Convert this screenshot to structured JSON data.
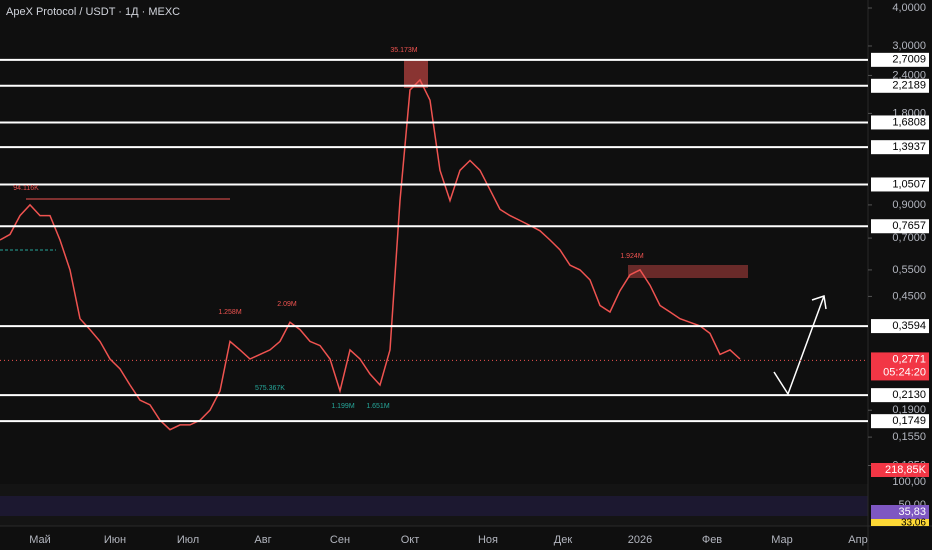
{
  "chart_data": {
    "type": "line",
    "title": "ApeX Protocol / USDT · 1Д · MEXC",
    "log_scale": true,
    "ylim": [
      0.112,
      4.25
    ],
    "yticks": [
      {
        "value": 4,
        "label": "4,0000"
      },
      {
        "value": 3,
        "label": "3,0000"
      },
      {
        "value": 2.4,
        "label": "2,4000"
      },
      {
        "value": 1.8,
        "label": "1,8000"
      },
      {
        "value": 0.9,
        "label": "0,9000"
      },
      {
        "value": 0.7,
        "label": "0,7000"
      },
      {
        "value": 0.55,
        "label": "0,5500"
      },
      {
        "value": 0.45,
        "label": "0,4500"
      },
      {
        "value": 0.19,
        "label": "0,1900"
      },
      {
        "value": 0.155,
        "label": "0,1550"
      },
      {
        "value": 0.125,
        "label": "0,1250"
      }
    ],
    "levels": [
      {
        "value": 2.7009,
        "label": "2,7009"
      },
      {
        "value": 2.2189,
        "label": "2,2189"
      },
      {
        "value": 1.6808,
        "label": "1,6808"
      },
      {
        "value": 1.3937,
        "label": "1,3937"
      },
      {
        "value": 1.0507,
        "label": "1,0507"
      },
      {
        "value": 0.7657,
        "label": "0,7657"
      },
      {
        "value": 0.3594,
        "label": "0,3594"
      },
      {
        "value": 0.213,
        "label": "0,2130"
      },
      {
        "value": 0.1749,
        "label": "0,1749"
      }
    ],
    "current_price": {
      "value": 0.2771,
      "label": "0,2771"
    },
    "countdown": "05:24:20",
    "volume": {
      "value": 218850,
      "label": "218,85K"
    },
    "rsi": {
      "scale_top": {
        "value": 100,
        "label": "100,00"
      },
      "mid": {
        "value": 50,
        "label": "50,00"
      },
      "rsi_value": {
        "value": 35.83,
        "label": "35,83"
      },
      "ma_value": {
        "value": 33.06,
        "label": "33,06"
      }
    },
    "x_labels": [
      "Май",
      "Июн",
      "Июл",
      "Авг",
      "Сен",
      "Окт",
      "Ноя",
      "Дек",
      "2026",
      "Фев",
      "Мар",
      "Апр"
    ],
    "annotations": [
      "94.116K",
      "1.258M",
      "2.09M",
      "35.173M",
      "1.924M",
      "575.367K",
      "1.199M",
      "1.651M"
    ],
    "series": [
      {
        "name": "ApeX Protocol / USDT",
        "color": "#ef5350",
        "values": [
          0.69,
          0.72,
          0.83,
          0.9,
          0.83,
          0.83,
          0.69,
          0.55,
          0.38,
          0.35,
          0.32,
          0.28,
          0.26,
          0.23,
          0.205,
          0.198,
          0.176,
          0.164,
          0.17,
          0.17,
          0.176,
          0.19,
          0.22,
          0.32,
          0.3,
          0.28,
          0.29,
          0.3,
          0.32,
          0.37,
          0.35,
          0.32,
          0.31,
          0.28,
          0.22,
          0.3,
          0.28,
          0.25,
          0.23,
          0.3,
          0.93,
          2.15,
          2.32,
          1.99,
          1.17,
          0.93,
          1.17,
          1.26,
          1.17,
          1.01,
          0.87,
          0.83,
          0.8,
          0.77,
          0.74,
          0.69,
          0.64,
          0.57,
          0.55,
          0.51,
          0.42,
          0.4,
          0.47,
          0.53,
          0.55,
          0.49,
          0.42,
          0.4,
          0.38,
          0.37,
          0.36,
          0.34,
          0.29,
          0.3,
          0.28
        ]
      }
    ]
  }
}
